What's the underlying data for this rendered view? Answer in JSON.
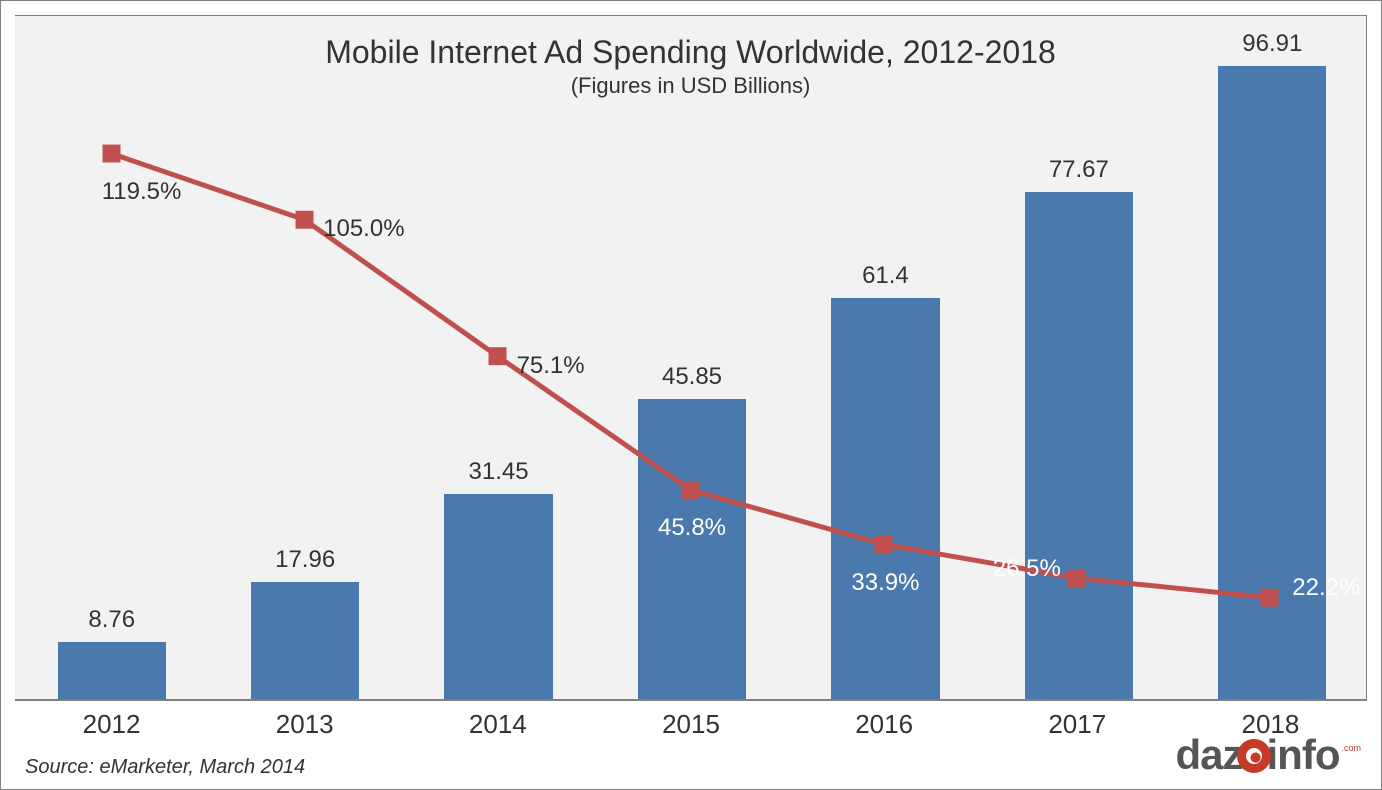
{
  "chart": {
    "type": "bar+line",
    "title": "Mobile Internet Ad Spending Worldwide, 2012-2018",
    "subtitle": "(Figures in USD Billions)",
    "title_fontsize": 32,
    "subtitle_fontsize": 22,
    "title_color": "#333333",
    "categories": [
      "2012",
      "2013",
      "2014",
      "2015",
      "2016",
      "2017",
      "2018"
    ],
    "bar_values": [
      8.76,
      17.96,
      31.45,
      45.85,
      61.4,
      77.67,
      96.91
    ],
    "bar_labels": [
      "8.76",
      "17.96",
      "31.45",
      "45.85",
      "61.4",
      "77.67",
      "96.91"
    ],
    "bar_color": "#4a79ad",
    "bar_width_ratio": 0.56,
    "bar_label_fontsize": 24,
    "bar_label_color": "#333333",
    "bar_value_max": 105,
    "line_values": [
      119.5,
      105.0,
      75.1,
      45.8,
      33.9,
      26.5,
      22.2
    ],
    "line_labels": [
      "119.5%",
      "105.0%",
      "75.1%",
      "45.8%",
      "33.9%",
      "26.5%",
      "22.2%"
    ],
    "line_color": "#c0504d",
    "line_width": 5,
    "marker_size": 18,
    "line_value_max": 130,
    "line_value_min": 0,
    "pct_label_colors_outside": "#333333",
    "pct_label_colors_inside": "#ffffff",
    "pct_label_fontsize": 24,
    "plot_background": "#f2f2f2",
    "axis_color": "#808080",
    "xaxis_fontsize": 26,
    "source_text": "Source: eMarketer, March 2014",
    "source_fontsize": 20,
    "logo_text_pre": "daz",
    "logo_text_post": "info",
    "logo_suffix": ".com",
    "logo_accent_color": "#c63a2a",
    "logo_text_color": "#555555"
  }
}
